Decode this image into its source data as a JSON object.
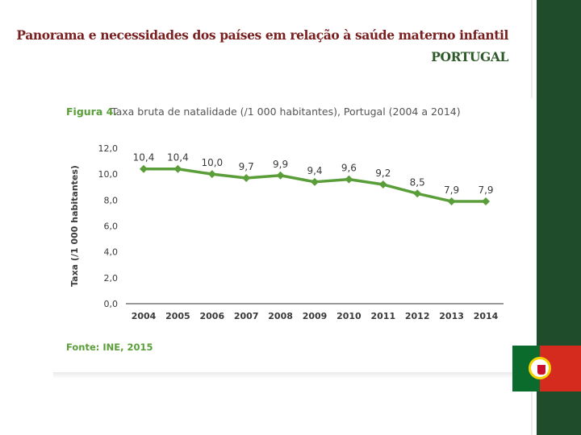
{
  "page": {
    "title_line1": "Panorama e necessidades dos países em relação à saúde materno infantil",
    "title_line2": "PORTUGAL"
  },
  "colors": {
    "title": "#7a1f1f",
    "country": "#2e5a2a",
    "series": "#5a9e3a",
    "sidebar": "#1f4d2b"
  },
  "figure": {
    "label": "Figura 4.",
    "caption": "Taxa bruta de natalidade (/1 000 habitantes), Portugal (2004 a 2014)",
    "source": "Fonte: INE, 2015"
  },
  "chart_data": {
    "type": "line",
    "title": "Figura 4. Taxa bruta de natalidade (/1 000 habitantes), Portugal (2004 a 2014)",
    "categories": [
      "2004",
      "2005",
      "2006",
      "2007",
      "2008",
      "2009",
      "2010",
      "2011",
      "2012",
      "2013",
      "2014"
    ],
    "values": [
      10.4,
      10.4,
      10.0,
      9.7,
      9.9,
      9.4,
      9.6,
      9.2,
      8.5,
      7.9,
      7.9
    ],
    "value_labels": [
      "10,4",
      "10,4",
      "10,0",
      "9,7",
      "9,9",
      "9,4",
      "9,6",
      "9,2",
      "8,5",
      "7,9",
      "7,9"
    ],
    "ylabel": "Taxa (/1 000 habitantes)",
    "xlabel": "",
    "ylim": [
      0,
      12
    ],
    "yticks": [
      "0,0",
      "2,0",
      "4,0",
      "6,0",
      "8,0",
      "10,0",
      "12,0"
    ],
    "grid": false,
    "marker": "diamond"
  },
  "flag": {
    "icon": "portugal-flag-icon"
  }
}
